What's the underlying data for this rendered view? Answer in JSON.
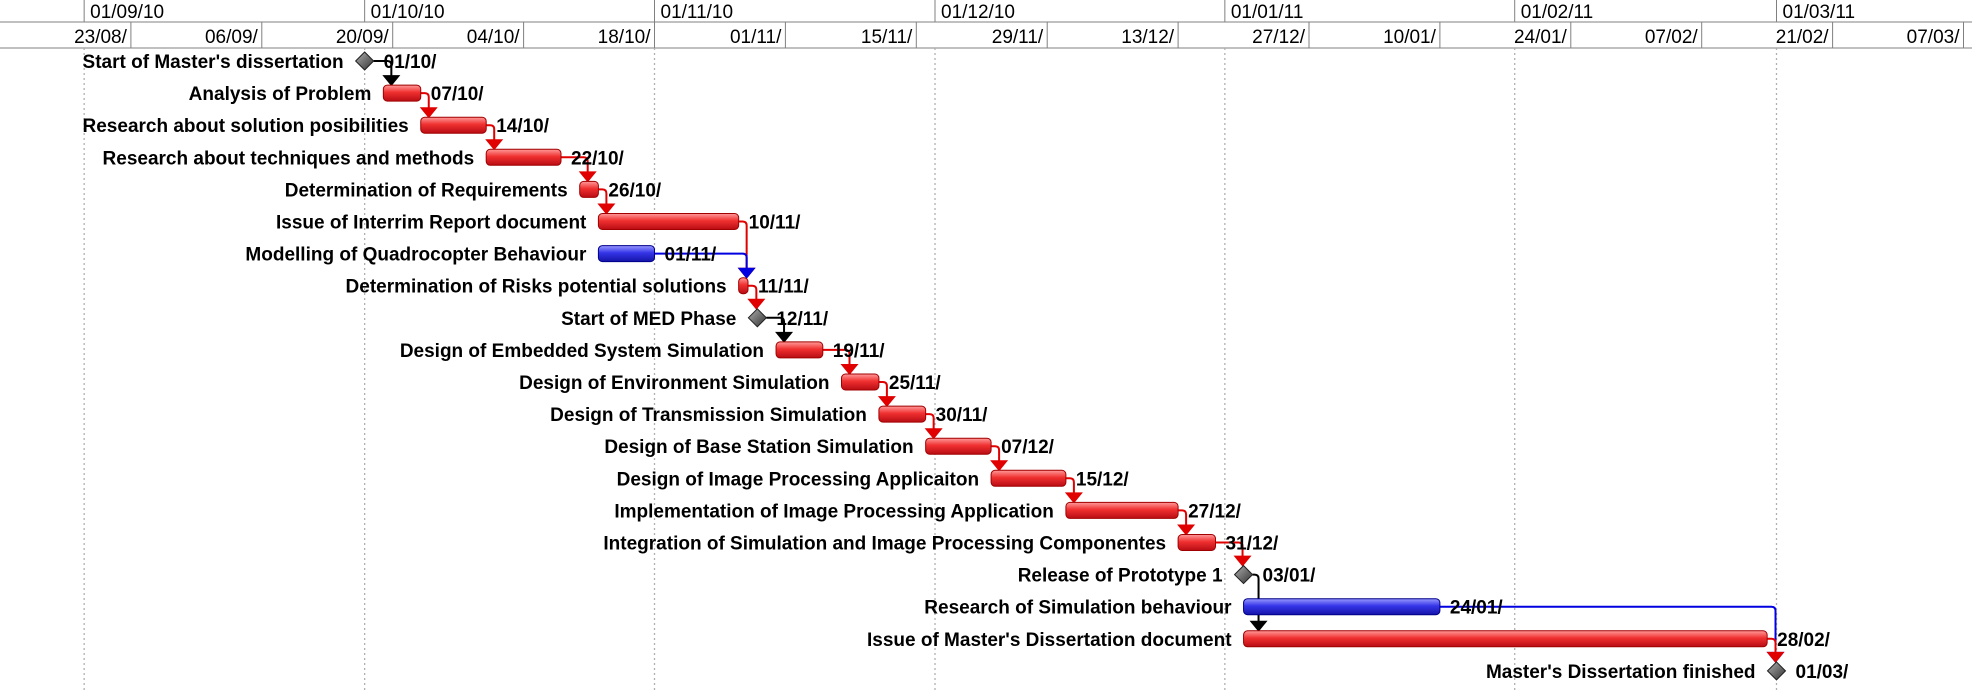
{
  "chart_data": {
    "type": "gantt",
    "timescale": {
      "month_ticks": [
        {
          "date": "2010-09-01",
          "label": "01/09/10"
        },
        {
          "date": "2010-10-01",
          "label": "01/10/10"
        },
        {
          "date": "2010-11-01",
          "label": "01/11/10"
        },
        {
          "date": "2010-12-01",
          "label": "01/12/10"
        },
        {
          "date": "2011-01-01",
          "label": "01/01/11"
        },
        {
          "date": "2011-02-01",
          "label": "01/02/11"
        },
        {
          "date": "2011-03-01",
          "label": "01/03/11"
        }
      ],
      "week_ticks": [
        {
          "date": "2010-08-23",
          "label": "23/08/"
        },
        {
          "date": "2010-09-06",
          "label": "06/09/"
        },
        {
          "date": "2010-09-20",
          "label": "20/09/"
        },
        {
          "date": "2010-10-04",
          "label": "04/10/"
        },
        {
          "date": "2010-10-18",
          "label": "18/10/"
        },
        {
          "date": "2010-11-01",
          "label": "01/11/"
        },
        {
          "date": "2010-11-15",
          "label": "15/11/"
        },
        {
          "date": "2010-11-29",
          "label": "29/11/"
        },
        {
          "date": "2010-12-13",
          "label": "13/12/"
        },
        {
          "date": "2010-12-27",
          "label": "27/12/"
        },
        {
          "date": "2011-01-10",
          "label": "10/01/"
        },
        {
          "date": "2011-01-24",
          "label": "24/01/"
        },
        {
          "date": "2011-02-07",
          "label": "07/02/"
        },
        {
          "date": "2011-02-21",
          "label": "21/02/"
        },
        {
          "date": "2011-03-07",
          "label": "07/03/"
        }
      ]
    },
    "colors": {
      "critical": "#e8202a",
      "noncritical": "#2b2be0",
      "milestone": "#4a4a4a",
      "link_critical": "#e00000",
      "link_noncritical": "#0000e0",
      "link_milestone": "#000000",
      "gridline": "#b0b0b0"
    },
    "tasks": [
      {
        "name": "Start of Master's dissertation",
        "start": "2010-10-01",
        "end": "2010-10-01",
        "end_label": "01/10/",
        "kind": "milestone"
      },
      {
        "name": "Analysis of Problem",
        "start": "2010-10-03",
        "end": "2010-10-07",
        "end_label": "07/10/",
        "kind": "critical"
      },
      {
        "name": "Research about solution posibilities",
        "start": "2010-10-07",
        "end": "2010-10-14",
        "end_label": "14/10/",
        "kind": "critical"
      },
      {
        "name": "Research about techniques and methods",
        "start": "2010-10-14",
        "end": "2010-10-22",
        "end_label": "22/10/",
        "kind": "critical"
      },
      {
        "name": "Determination of Requirements",
        "start": "2010-10-24",
        "end": "2010-10-26",
        "end_label": "26/10/",
        "kind": "critical"
      },
      {
        "name": "Issue of Interrim Report document",
        "start": "2010-10-26",
        "end": "2010-11-10",
        "end_label": "10/11/",
        "kind": "critical"
      },
      {
        "name": "Modelling of Quadrocopter Behaviour",
        "start": "2010-10-26",
        "end": "2010-11-01",
        "end_label": "01/11/",
        "kind": "noncritical"
      },
      {
        "name": "Determination of Risks potential solutions",
        "start": "2010-11-10",
        "end": "2010-11-11",
        "end_label": "11/11/",
        "kind": "critical"
      },
      {
        "name": "Start of MED Phase",
        "start": "2010-11-12",
        "end": "2010-11-12",
        "end_label": "12/11/",
        "kind": "milestone"
      },
      {
        "name": "Design of Embedded System Simulation",
        "start": "2010-11-14",
        "end": "2010-11-19",
        "end_label": "19/11/",
        "kind": "critical"
      },
      {
        "name": "Design of Environment Simulation",
        "start": "2010-11-21",
        "end": "2010-11-25",
        "end_label": "25/11/",
        "kind": "critical"
      },
      {
        "name": "Design of Transmission Simulation",
        "start": "2010-11-25",
        "end": "2010-11-30",
        "end_label": "30/11/",
        "kind": "critical"
      },
      {
        "name": "Design of Base Station Simulation",
        "start": "2010-11-30",
        "end": "2010-12-07",
        "end_label": "07/12/",
        "kind": "critical"
      },
      {
        "name": "Design of Image Processing Applicaiton",
        "start": "2010-12-07",
        "end": "2010-12-15",
        "end_label": "15/12/",
        "kind": "critical"
      },
      {
        "name": "Implementation of Image Processing Application",
        "start": "2010-12-15",
        "end": "2010-12-27",
        "end_label": "27/12/",
        "kind": "critical"
      },
      {
        "name": "Integration of Simulation and Image Processing Componentes",
        "start": "2010-12-27",
        "end": "2010-12-31",
        "end_label": "31/12/",
        "kind": "critical"
      },
      {
        "name": "Release of Prototype 1",
        "start": "2011-01-03",
        "end": "2011-01-03",
        "end_label": "03/01/",
        "kind": "milestone"
      },
      {
        "name": "Research of Simulation behaviour",
        "start": "2011-01-03",
        "end": "2011-01-24",
        "end_label": "24/01/",
        "kind": "noncritical"
      },
      {
        "name": "Issue of Master's Dissertation document",
        "start": "2011-01-03",
        "end": "2011-02-28",
        "end_label": "28/02/",
        "kind": "critical"
      },
      {
        "name": "Master's Dissertation finished",
        "start": "2011-03-01",
        "end": "2011-03-01",
        "end_label": "01/03/",
        "kind": "milestone"
      }
    ],
    "links": [
      {
        "from": 0,
        "to": 1,
        "kind": "milestone"
      },
      {
        "from": 1,
        "to": 2,
        "kind": "critical"
      },
      {
        "from": 2,
        "to": 3,
        "kind": "critical"
      },
      {
        "from": 3,
        "to": 4,
        "kind": "critical"
      },
      {
        "from": 4,
        "to": 5,
        "kind": "critical"
      },
      {
        "from": 5,
        "to": 7,
        "kind": "critical"
      },
      {
        "from": 6,
        "to": 7,
        "kind": "noncritical"
      },
      {
        "from": 7,
        "to": 8,
        "kind": "critical"
      },
      {
        "from": 8,
        "to": 9,
        "kind": "milestone"
      },
      {
        "from": 9,
        "to": 10,
        "kind": "critical"
      },
      {
        "from": 10,
        "to": 11,
        "kind": "critical"
      },
      {
        "from": 11,
        "to": 12,
        "kind": "critical"
      },
      {
        "from": 12,
        "to": 13,
        "kind": "critical"
      },
      {
        "from": 13,
        "to": 14,
        "kind": "critical"
      },
      {
        "from": 14,
        "to": 15,
        "kind": "critical"
      },
      {
        "from": 15,
        "to": 16,
        "kind": "critical"
      },
      {
        "from": 16,
        "to": 18,
        "kind": "milestone"
      },
      {
        "from": 17,
        "to": 19,
        "kind": "noncritical"
      },
      {
        "from": 18,
        "to": 19,
        "kind": "critical"
      }
    ]
  }
}
